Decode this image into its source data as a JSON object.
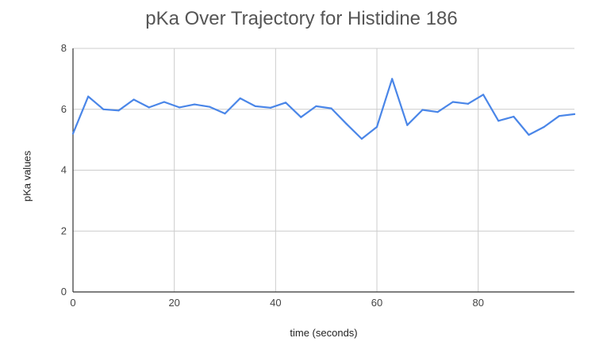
{
  "chart_data": {
    "type": "line",
    "title": "pKa Over Trajectory for Histidine 186",
    "xlabel": "time (seconds)",
    "ylabel": "pKa values",
    "xlim": [
      0,
      99
    ],
    "ylim": [
      0,
      8
    ],
    "x_ticks": [
      0,
      20,
      40,
      60,
      80
    ],
    "y_ticks": [
      0,
      2,
      4,
      6,
      8
    ],
    "grid": true,
    "legend": "none",
    "line_color": "#4a86e8",
    "series": [
      {
        "x": [
          0,
          3,
          6,
          9,
          12,
          15,
          18,
          21,
          24,
          27,
          30,
          33,
          36,
          39,
          42,
          45,
          48,
          51,
          54,
          57,
          60,
          63,
          66,
          69,
          72,
          75,
          78,
          81,
          84,
          87,
          90,
          93,
          96,
          99
        ],
        "values": [
          5.2,
          6.42,
          6.0,
          5.96,
          6.32,
          6.06,
          6.24,
          6.06,
          6.16,
          6.08,
          5.86,
          6.36,
          6.1,
          6.05,
          6.22,
          5.74,
          6.1,
          6.03,
          5.52,
          5.03,
          5.42,
          7.0,
          5.48,
          5.98,
          5.91,
          6.24,
          6.18,
          6.48,
          5.62,
          5.76,
          5.16,
          5.42,
          5.78,
          5.84
        ]
      }
    ]
  }
}
